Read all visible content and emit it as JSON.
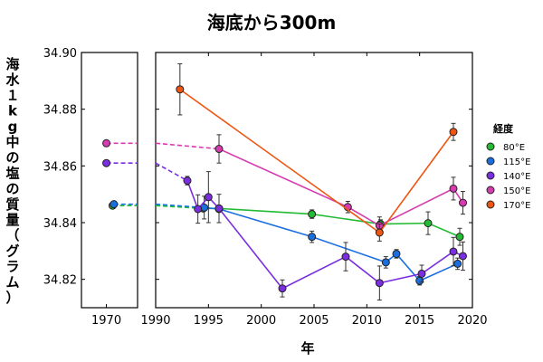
{
  "chart_data": {
    "type": "line",
    "title": "海底から300m",
    "xlabel": "年",
    "ylabel": "海水１kg中の塩の質量（グラム）",
    "ylim": [
      34.81,
      34.9
    ],
    "yticks": [
      "34.90",
      "34.88",
      "34.86",
      "34.84",
      "34.82"
    ],
    "ytick_values": [
      34.9,
      34.88,
      34.86,
      34.84,
      34.82
    ],
    "left_panel": {
      "xlim": [
        1966,
        1975
      ],
      "xticks": [
        "1970"
      ],
      "xtick_values": [
        1970
      ]
    },
    "right_panel": {
      "xlim": [
        1990,
        2020
      ],
      "xticks": [
        "1990",
        "1995",
        "2000",
        "2005",
        "2010",
        "2015",
        "2020"
      ],
      "xtick_values": [
        1990,
        1995,
        2000,
        2005,
        2010,
        2015,
        2020
      ]
    },
    "legend": {
      "title": "経度",
      "placement": "right"
    },
    "series": [
      {
        "name": "80°E",
        "color": "#22bb33",
        "early": [
          1971,
          34.846
        ],
        "points": [
          [
            1994.5,
            34.845
          ],
          [
            1996,
            34.845
          ],
          [
            2004.8,
            34.843
          ],
          [
            2011.3,
            34.8395
          ],
          [
            2015.8,
            34.8398
          ],
          [
            2018.8,
            34.835
          ]
        ],
        "errors": [
          0,
          0,
          0.0015,
          0.0015,
          0.004,
          0.003
        ]
      },
      {
        "name": "115°E",
        "color": "#1a6fe0",
        "early": [
          1971.2,
          34.8465
        ],
        "points": [
          [
            1994.6,
            34.8453
          ],
          [
            1996,
            34.8448
          ],
          [
            2004.8,
            34.835
          ],
          [
            2011.8,
            34.826
          ],
          [
            2012.8,
            34.829
          ],
          [
            2015,
            34.8195
          ],
          [
            2018.6,
            34.8255
          ]
        ],
        "errors": [
          0.004,
          0,
          0.002,
          0.002,
          0.0015,
          0.0015,
          0.002
        ]
      },
      {
        "name": "140°E",
        "color": "#7a2ee0",
        "early": [
          1970,
          34.861
        ],
        "points": [
          [
            1993,
            34.8548
          ],
          [
            1994,
            34.8448
          ],
          [
            1995,
            34.849
          ],
          [
            1996,
            34.845
          ],
          [
            2002,
            34.8168
          ],
          [
            2008,
            34.828
          ],
          [
            2011.2,
            34.8187
          ],
          [
            2015.2,
            34.822
          ],
          [
            2018.2,
            34.8298
          ],
          [
            2019.1,
            34.8282
          ]
        ],
        "errors": [
          0.0015,
          0.005,
          0.009,
          0.005,
          0.003,
          0.005,
          0.006,
          0.003,
          0.005,
          0.005
        ]
      },
      {
        "name": "150°E",
        "color": "#d63cb0",
        "early": [
          1970,
          34.868
        ],
        "points": [
          [
            1996,
            34.866
          ],
          [
            2008.2,
            34.8455
          ],
          [
            2011.2,
            34.839
          ],
          [
            2018.2,
            34.852
          ],
          [
            2019.1,
            34.847
          ]
        ],
        "errors": [
          0.005,
          0.002,
          0.003,
          0.004,
          0.004
        ]
      },
      {
        "name": "170°E",
        "color": "#ee5511",
        "early": null,
        "points": [
          [
            1992.3,
            34.887
          ],
          [
            2011.2,
            34.8365
          ],
          [
            2018.2,
            34.872
          ]
        ],
        "errors": [
          0.009,
          0.003,
          0.003
        ]
      }
    ]
  }
}
